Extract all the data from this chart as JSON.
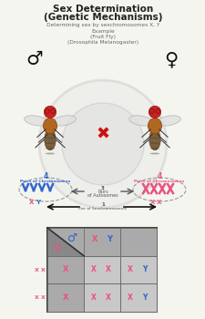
{
  "title_line1": "Sex Determination",
  "title_line2": "(Genetic Mechanisms)",
  "subtitle1": "Determining sex by sexchromosomes X, Y",
  "subtitle2": "Example",
  "subtitle3": "(Fruit Fly)",
  "subtitle4": "(Drosophila Melanogaster)",
  "bg_color": "#f5f5f0",
  "pink": "#e75480",
  "blue": "#3366cc",
  "dark_gray": "#555555",
  "light_gray": "#cccccc"
}
